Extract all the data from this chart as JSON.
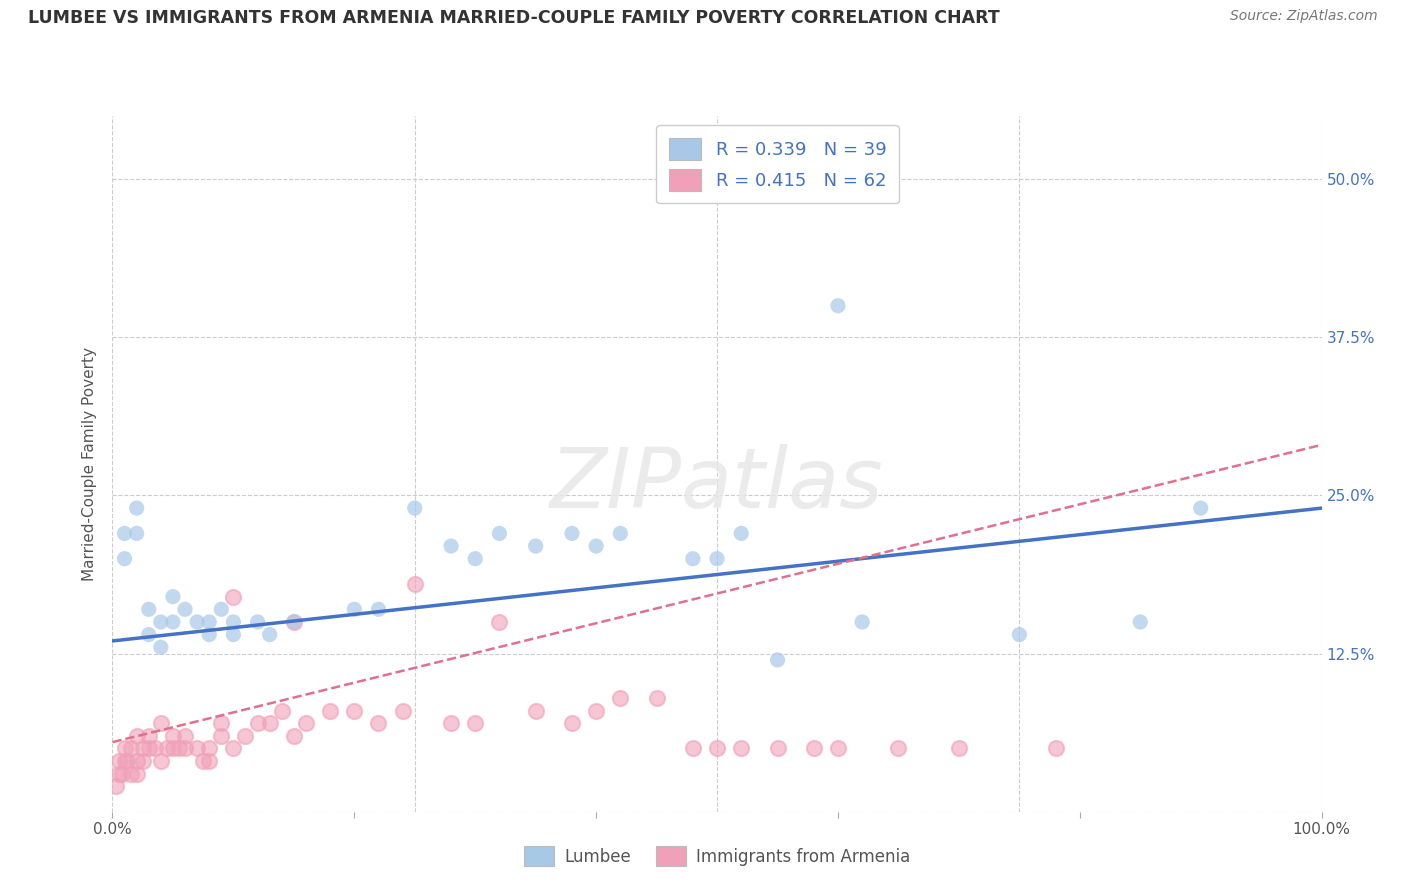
{
  "title": "LUMBEE VS IMMIGRANTS FROM ARMENIA MARRIED-COUPLE FAMILY POVERTY CORRELATION CHART",
  "source": "Source: ZipAtlas.com",
  "ylabel": "Married-Couple Family Poverty",
  "xlim": [
    0,
    100
  ],
  "ylim": [
    0,
    55
  ],
  "yticks": [
    0,
    12.5,
    25,
    37.5,
    50
  ],
  "right_yticklabels": [
    "",
    "12.5%",
    "25.0%",
    "37.5%",
    "50.0%"
  ],
  "xtick_positions": [
    0,
    20,
    40,
    60,
    80,
    100
  ],
  "lumbee_color": "#a8c8e8",
  "armenia_color": "#f0a0b8",
  "lumbee_line_color": "#4472c4",
  "armenia_line_color": "#e07090",
  "lumbee_R": 0.339,
  "lumbee_N": 39,
  "armenia_R": 0.415,
  "armenia_N": 62,
  "watermark": "ZIPatlas",
  "bg_color": "#ffffff",
  "grid_color": "#cccccc",
  "lumbee_scatter": [
    [
      1,
      22
    ],
    [
      1,
      20
    ],
    [
      2,
      24
    ],
    [
      2,
      22
    ],
    [
      3,
      16
    ],
    [
      3,
      14
    ],
    [
      4,
      15
    ],
    [
      4,
      13
    ],
    [
      5,
      17
    ],
    [
      5,
      15
    ],
    [
      6,
      16
    ],
    [
      7,
      15
    ],
    [
      8,
      15
    ],
    [
      8,
      14
    ],
    [
      9,
      16
    ],
    [
      10,
      15
    ],
    [
      10,
      14
    ],
    [
      12,
      15
    ],
    [
      13,
      14
    ],
    [
      15,
      15
    ],
    [
      20,
      16
    ],
    [
      22,
      16
    ],
    [
      25,
      24
    ],
    [
      28,
      21
    ],
    [
      30,
      20
    ],
    [
      32,
      22
    ],
    [
      35,
      21
    ],
    [
      38,
      22
    ],
    [
      40,
      21
    ],
    [
      42,
      22
    ],
    [
      48,
      20
    ],
    [
      50,
      20
    ],
    [
      52,
      22
    ],
    [
      55,
      12
    ],
    [
      60,
      40
    ],
    [
      62,
      15
    ],
    [
      75,
      14
    ],
    [
      85,
      15
    ],
    [
      90,
      24
    ]
  ],
  "armenia_scatter": [
    [
      0.3,
      2
    ],
    [
      0.5,
      3
    ],
    [
      0.5,
      4
    ],
    [
      0.8,
      3
    ],
    [
      1,
      4
    ],
    [
      1,
      5
    ],
    [
      1.2,
      4
    ],
    [
      1.5,
      3
    ],
    [
      1.5,
      5
    ],
    [
      2,
      4
    ],
    [
      2,
      6
    ],
    [
      2,
      3
    ],
    [
      2.5,
      5
    ],
    [
      2.5,
      4
    ],
    [
      3,
      5
    ],
    [
      3,
      6
    ],
    [
      3.5,
      5
    ],
    [
      4,
      7
    ],
    [
      4,
      4
    ],
    [
      4.5,
      5
    ],
    [
      5,
      6
    ],
    [
      5,
      5
    ],
    [
      5.5,
      5
    ],
    [
      6,
      6
    ],
    [
      6,
      5
    ],
    [
      7,
      5
    ],
    [
      7.5,
      4
    ],
    [
      8,
      5
    ],
    [
      8,
      4
    ],
    [
      9,
      6
    ],
    [
      9,
      7
    ],
    [
      10,
      17
    ],
    [
      10,
      5
    ],
    [
      11,
      6
    ],
    [
      12,
      7
    ],
    [
      13,
      7
    ],
    [
      14,
      8
    ],
    [
      15,
      15
    ],
    [
      15,
      6
    ],
    [
      16,
      7
    ],
    [
      18,
      8
    ],
    [
      20,
      8
    ],
    [
      22,
      7
    ],
    [
      24,
      8
    ],
    [
      25,
      18
    ],
    [
      28,
      7
    ],
    [
      30,
      7
    ],
    [
      32,
      15
    ],
    [
      35,
      8
    ],
    [
      38,
      7
    ],
    [
      40,
      8
    ],
    [
      42,
      9
    ],
    [
      45,
      9
    ],
    [
      48,
      5
    ],
    [
      50,
      5
    ],
    [
      52,
      5
    ],
    [
      55,
      5
    ],
    [
      58,
      5
    ],
    [
      60,
      5
    ],
    [
      65,
      5
    ],
    [
      70,
      5
    ],
    [
      78,
      5
    ]
  ],
  "lumbee_line": [
    0,
    100,
    13.5,
    24.0
  ],
  "armenia_line": [
    0,
    100,
    5.5,
    29.0
  ]
}
